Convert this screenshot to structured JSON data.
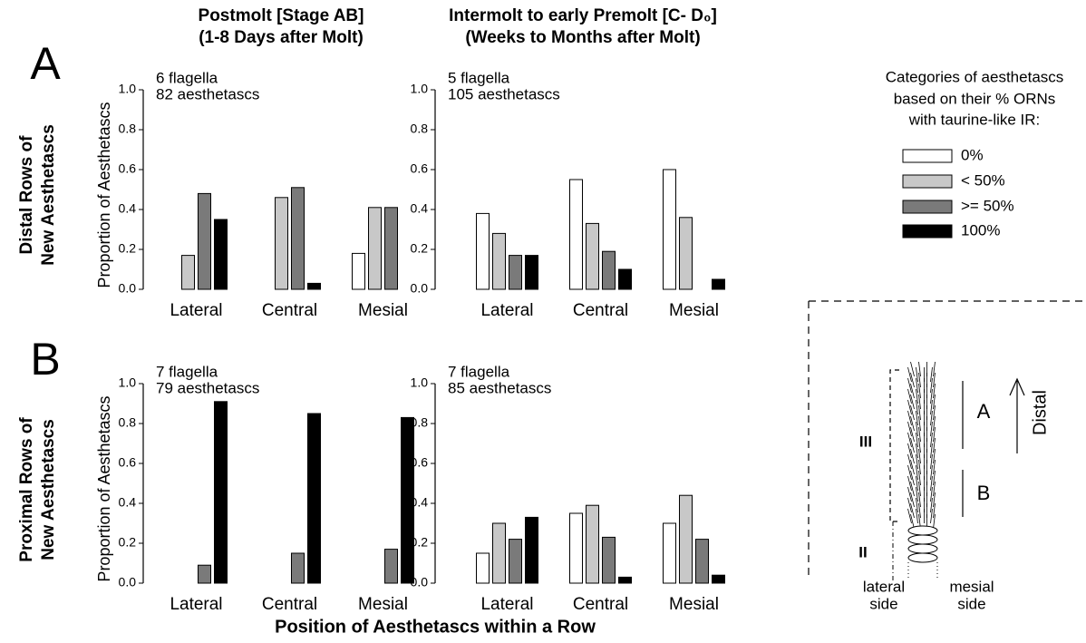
{
  "columns": [
    {
      "title": [
        "Postmolt [Stage AB]",
        "(1-8 Days after Molt)"
      ]
    },
    {
      "title": [
        "Intermolt to early Premolt [C- D₀]",
        "(Weeks to Months after Molt)"
      ]
    }
  ],
  "rows": [
    {
      "letter": "A",
      "label": [
        "Distal Rows of",
        "New Aesthetascs"
      ]
    },
    {
      "letter": "B",
      "label": [
        "Proximal Rows of",
        "New Aesthetascs"
      ]
    }
  ],
  "x_label": "Position of Aesthetascs within a Row",
  "legend": {
    "title": [
      "Categories of aesthetascs",
      "based on their % ORNs",
      "with taurine-like IR:"
    ],
    "items": [
      {
        "name": "0%",
        "color": "#ffffff"
      },
      {
        "name": "< 50%",
        "color": "#c8c8c8"
      },
      {
        "name": ">= 50%",
        "color": "#7a7a7a"
      },
      {
        "name": "100%",
        "color": "#000000"
      }
    ]
  },
  "diagram": {
    "labels": {
      "region_iii": "III",
      "region_ii": "II",
      "a": "A",
      "b": "B",
      "distal": "Distal",
      "lateral": [
        "lateral",
        "side"
      ],
      "mesial": [
        "mesial",
        "side"
      ]
    }
  },
  "chart_data": [
    {
      "type": "bar",
      "y_label": "Proportion of Aesthetascs",
      "annotations": [
        "6 flagella",
        "82 aesthetascs"
      ],
      "categories": [
        "Lateral",
        "Central",
        "Mesial"
      ],
      "series": [
        {
          "values": [
            0,
            0,
            0.18
          ]
        },
        {
          "values": [
            0.17,
            0.46,
            0.41
          ]
        },
        {
          "values": [
            0.48,
            0.51,
            0.41
          ]
        },
        {
          "values": [
            0.35,
            0.03,
            0
          ]
        }
      ],
      "ylim": [
        0,
        1
      ],
      "yticks": [
        {
          "value": 0,
          "label": "0.0"
        },
        0.2,
        0.4,
        0.6,
        0.8,
        {
          "value": 1,
          "label": "1.0"
        }
      ]
    },
    {
      "type": "bar",
      "annotations": [
        "5 flagella",
        "105 aesthetascs"
      ],
      "categories": [
        "Lateral",
        "Central",
        "Mesial"
      ],
      "series": [
        {
          "values": [
            0.38,
            0.55,
            0.6
          ]
        },
        {
          "values": [
            0.28,
            0.33,
            0.36
          ]
        },
        {
          "values": [
            0.17,
            0.19,
            0
          ]
        },
        {
          "values": [
            0.17,
            0.1,
            0.05
          ]
        }
      ],
      "ylim": [
        0,
        1
      ],
      "yticks": [
        {
          "value": 0,
          "label": "0.0"
        },
        0.2,
        0.4,
        0.6,
        0.8,
        {
          "value": 1,
          "label": "1.0"
        }
      ]
    },
    {
      "type": "bar",
      "y_label": "Proportion of Aesthetascs",
      "annotations": [
        "7 flagella",
        "79 aesthetascs"
      ],
      "categories": [
        "Lateral",
        "Central",
        "Mesial"
      ],
      "series": [
        {
          "values": [
            0,
            0,
            0
          ]
        },
        {
          "values": [
            0,
            0,
            0
          ]
        },
        {
          "values": [
            0.09,
            0.15,
            0.17
          ]
        },
        {
          "values": [
            0.91,
            0.85,
            0.83
          ]
        }
      ],
      "ylim": [
        0,
        1
      ],
      "yticks": [
        {
          "value": 0,
          "label": "0.0"
        },
        0.2,
        0.4,
        0.6,
        0.8,
        {
          "value": 1,
          "label": "1.0"
        }
      ]
    },
    {
      "type": "bar",
      "annotations": [
        "7 flagella",
        "85 aesthetascs"
      ],
      "categories": [
        "Lateral",
        "Central",
        "Mesial"
      ],
      "series": [
        {
          "values": [
            0.15,
            0.35,
            0.3
          ]
        },
        {
          "values": [
            0.3,
            0.39,
            0.44
          ]
        },
        {
          "values": [
            0.22,
            0.23,
            0.22
          ]
        },
        {
          "values": [
            0.33,
            0.03,
            0.04
          ]
        }
      ],
      "ylim": [
        0,
        1
      ],
      "yticks": [
        {
          "value": 0,
          "label": "0.0"
        },
        0.2,
        0.4,
        0.6,
        0.8,
        {
          "value": 1,
          "label": "1.0"
        }
      ]
    }
  ]
}
